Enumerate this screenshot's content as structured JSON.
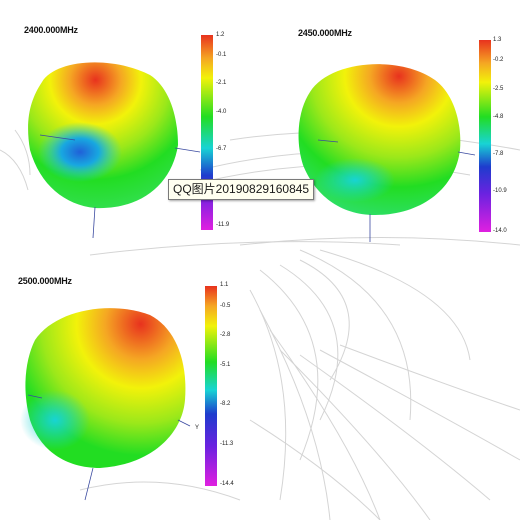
{
  "tooltip": {
    "text": "QQ图片20190829160845"
  },
  "panels": [
    {
      "freq": "2400.000MHz",
      "ticks": [
        "1.2",
        "-0.1",
        "-2.1",
        "-4.0",
        "-6.7",
        "-11.9"
      ]
    },
    {
      "freq": "2450.000MHz",
      "ticks": [
        "1.3",
        "-0.2",
        "-2.5",
        "-4.8",
        "-7.8",
        "-10.9",
        "-14.0"
      ]
    },
    {
      "freq": "2500.000MHz",
      "axis_label": "Y",
      "ticks": [
        "1.1",
        "-0.5",
        "-2.8",
        "-5.1",
        "-8.2",
        "-11.3",
        "-14.4"
      ]
    }
  ],
  "colorscale": {
    "top": "#e8321e",
    "orange": "#f5a623",
    "yellow": "#f2f20a",
    "green": "#22dd22",
    "cyan": "#18d4d4",
    "blue": "#1e3ccd",
    "magenta": "#e020e0"
  }
}
